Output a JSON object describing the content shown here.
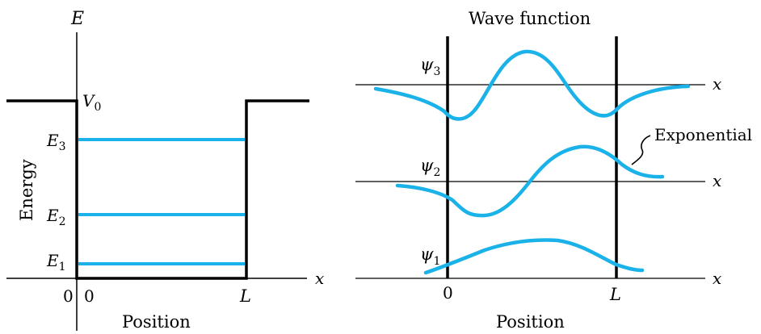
{
  "left_panel": {
    "axis_e_label": "E",
    "axis_x_label": "x",
    "ylabel": "Energy",
    "xlabel": "Position",
    "v0_label": "V",
    "v0_sub": "0",
    "origin_label_left": "0",
    "origin_label_right": "0",
    "well_width_label": "L",
    "levels": [
      {
        "symbol": "E",
        "sub": "3",
        "value": 3
      },
      {
        "symbol": "E",
        "sub": "2",
        "value": 2
      },
      {
        "symbol": "E",
        "sub": "1",
        "value": 1
      }
    ]
  },
  "right_panel": {
    "title": "Wave function",
    "xlabel": "Position",
    "axis_x_label": "x",
    "origin_label": "0",
    "well_width_label": "L",
    "annotation": "Exponential",
    "wavefunctions": [
      {
        "symbol": "ψ",
        "sub": "3"
      },
      {
        "symbol": "ψ",
        "sub": "2"
      },
      {
        "symbol": "ψ",
        "sub": "1"
      }
    ]
  },
  "colors": {
    "curve": "#1ab2e8",
    "axes": "#000000",
    "background": "#ffffff"
  }
}
